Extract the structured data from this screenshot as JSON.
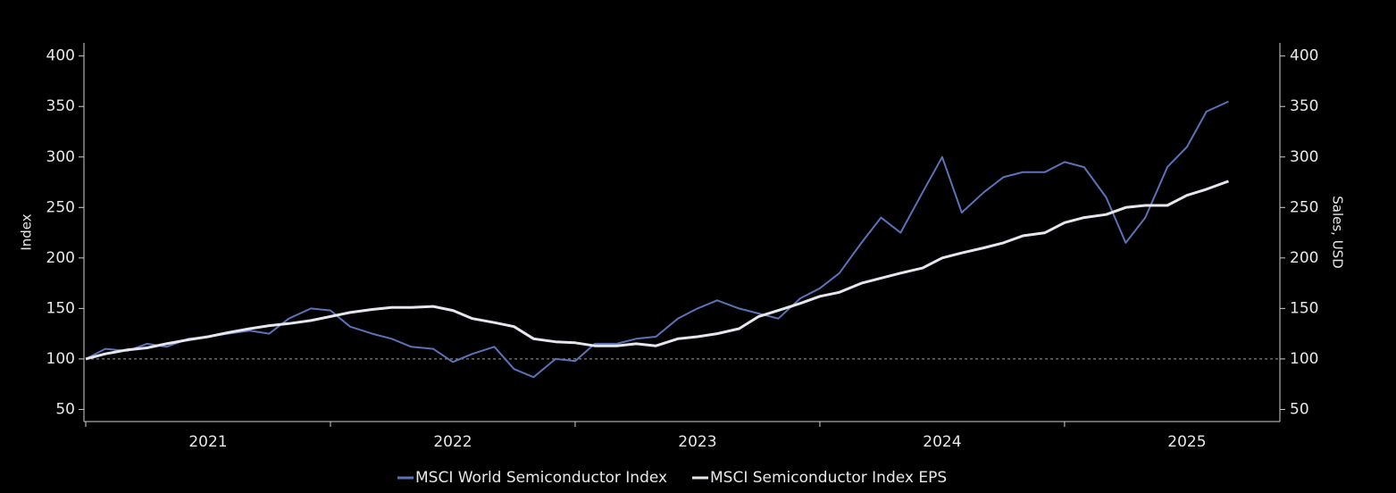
{
  "chart_data": {
    "type": "line",
    "x": [
      2021,
      2021.08,
      2021.17,
      2021.25,
      2021.33,
      2021.42,
      2021.5,
      2021.58,
      2021.67,
      2021.75,
      2021.83,
      2021.92,
      2022,
      2022.08,
      2022.17,
      2022.25,
      2022.33,
      2022.42,
      2022.5,
      2022.58,
      2022.67,
      2022.75,
      2022.83,
      2022.92,
      2023,
      2023.08,
      2023.17,
      2023.25,
      2023.33,
      2023.42,
      2023.5,
      2023.58,
      2023.67,
      2023.75,
      2023.83,
      2023.92,
      2024,
      2024.08,
      2024.17,
      2024.25,
      2024.33,
      2024.42,
      2024.5,
      2024.58,
      2024.67,
      2024.75,
      2024.83,
      2024.92,
      2025,
      2025.08,
      2025.17,
      2025.25,
      2025.33,
      2025.42,
      2025.5,
      2025.58,
      2025.67
    ],
    "series": [
      {
        "name": "MSCI World Semiconductor Index",
        "color": "#5b72b8",
        "values": [
          100,
          110,
          108,
          115,
          112,
          120,
          122,
          125,
          128,
          125,
          140,
          150,
          148,
          132,
          125,
          120,
          112,
          110,
          97,
          105,
          112,
          90,
          82,
          100,
          98,
          115,
          115,
          120,
          122,
          140,
          150,
          158,
          150,
          145,
          140,
          160,
          170,
          185,
          215,
          240,
          225,
          265,
          300,
          245,
          265,
          280,
          285,
          285,
          295,
          290,
          260,
          215,
          240,
          290,
          310,
          345,
          355
        ]
      },
      {
        "name": "MSCI Semiconductor Index EPS",
        "color": "#e6e6ee",
        "axis": "y2",
        "values": [
          100,
          105,
          109,
          111,
          115,
          119,
          122,
          126,
          130,
          133,
          135,
          138,
          142,
          146,
          149,
          151,
          151,
          152,
          148,
          140,
          136,
          132,
          120,
          117,
          116,
          113,
          113,
          115,
          113,
          120,
          122,
          125,
          130,
          142,
          148,
          155,
          162,
          166,
          175,
          180,
          185,
          190,
          200,
          205,
          210,
          215,
          222,
          225,
          235,
          240,
          243,
          250,
          252,
          252,
          262,
          268,
          276
        ]
      }
    ],
    "xlim": [
      2021,
      2025.88
    ],
    "xticks": [
      2021,
      2022,
      2023,
      2024,
      2025
    ],
    "ylim": [
      38,
      413
    ],
    "yticks": [
      50,
      100,
      150,
      200,
      250,
      300,
      350,
      400
    ],
    "y2lim": [
      38,
      413
    ],
    "y2ticks": [
      50,
      100,
      150,
      200,
      250,
      300,
      350,
      400
    ],
    "ylabel": "Index",
    "y2label": "Sales, USD",
    "reference_line": 100
  }
}
